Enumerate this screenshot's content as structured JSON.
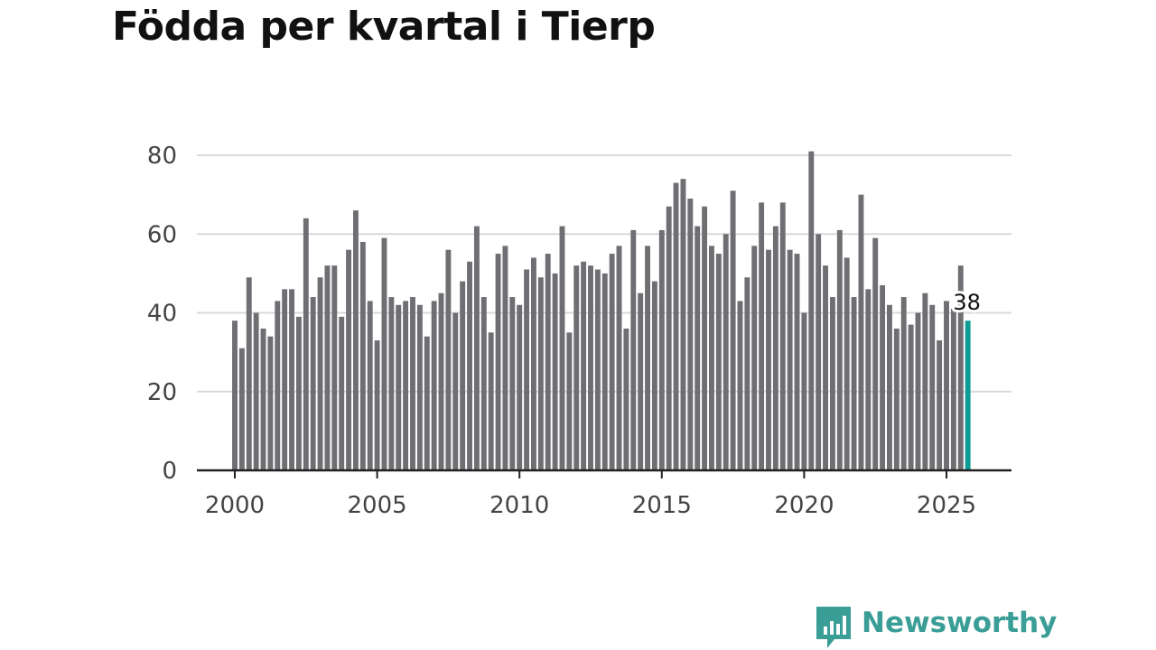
{
  "chart_data": {
    "type": "bar",
    "title": "Födda per kvartal i Tierp",
    "xlabel": "",
    "ylabel": "",
    "x_start_year": 2000,
    "x_tick_labels": [
      "2000",
      "2005",
      "2010",
      "2015",
      "2020",
      "2025"
    ],
    "x_tick_values": [
      2000,
      2005,
      2010,
      2015,
      2020,
      2025
    ],
    "y_ticks": [
      0,
      20,
      40,
      60,
      80
    ],
    "ylim": [
      0,
      80
    ],
    "grid": true,
    "highlight_color": "#0e9b95",
    "bar_color": "#6f6f73",
    "last_value_label": "38",
    "values": [
      38,
      31,
      49,
      40,
      36,
      34,
      43,
      46,
      46,
      39,
      64,
      44,
      49,
      52,
      52,
      39,
      56,
      66,
      58,
      43,
      33,
      59,
      44,
      42,
      43,
      44,
      42,
      34,
      43,
      45,
      56,
      40,
      48,
      53,
      62,
      44,
      35,
      55,
      57,
      44,
      42,
      51,
      54,
      49,
      55,
      50,
      62,
      35,
      52,
      53,
      52,
      51,
      50,
      55,
      57,
      36,
      61,
      45,
      57,
      48,
      61,
      67,
      73,
      74,
      69,
      62,
      67,
      57,
      55,
      60,
      71,
      43,
      49,
      57,
      68,
      56,
      62,
      68,
      56,
      55,
      40,
      81,
      60,
      52,
      44,
      61,
      54,
      44,
      70,
      46,
      59,
      47,
      42,
      36,
      44,
      37,
      40,
      45,
      42,
      33,
      43,
      41,
      52,
      38
    ]
  },
  "logo": {
    "text": "Newsworthy",
    "color": "#3a9d96"
  }
}
